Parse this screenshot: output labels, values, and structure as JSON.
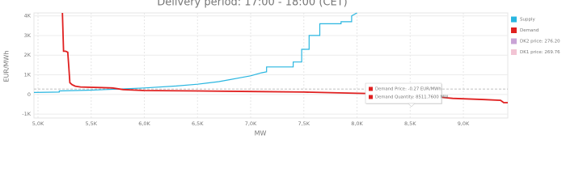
{
  "chart_data": {
    "type": "line",
    "title": "Delivery period: 17:00 - 18:00 (CET)",
    "x_label": "MW",
    "y_label": "EUR/MWh",
    "xlim": [
      4962,
      9418
    ],
    "ylim": [
      -1200,
      4150
    ],
    "xticks": [
      {
        "value": 5000,
        "label": "5,0K"
      },
      {
        "value": 5500,
        "label": "5,5K"
      },
      {
        "value": 6000,
        "label": "6,0K"
      },
      {
        "value": 6500,
        "label": "6,5K"
      },
      {
        "value": 7000,
        "label": "7,0K"
      },
      {
        "value": 7500,
        "label": "7,5K"
      },
      {
        "value": 8000,
        "label": "8,0K"
      },
      {
        "value": 8500,
        "label": "8,5K"
      },
      {
        "value": 9000,
        "label": "9,0K"
      }
    ],
    "yticks": [
      {
        "value": -1000,
        "label": "-1K"
      },
      0,
      {
        "value": 1000,
        "label": "1K"
      },
      {
        "value": 2000,
        "label": "2K"
      },
      {
        "value": 3000,
        "label": "3K"
      },
      {
        "value": 4000,
        "label": "4K"
      }
    ],
    "grid": true,
    "series": [
      {
        "name": "Supply",
        "color": "#29b6e0",
        "x": [
          4962,
          5200,
          5200,
          5500,
          5800,
          6000,
          6300,
          6500,
          6700,
          6800,
          6900,
          7000,
          7100,
          7150,
          7150,
          7400,
          7400,
          7480,
          7480,
          7550,
          7550,
          7650,
          7650,
          7850,
          7850,
          7950,
          7950,
          8000
        ],
        "values": [
          100,
          120,
          180,
          220,
          280,
          330,
          430,
          520,
          650,
          750,
          850,
          950,
          1100,
          1150,
          1400,
          1400,
          1650,
          1650,
          2300,
          2300,
          3000,
          3000,
          3600,
          3600,
          3700,
          3700,
          4000,
          4150
        ]
      },
      {
        "name": "Demand",
        "color": "#e02020",
        "x": [
          5230,
          5240,
          5260,
          5280,
          5290,
          5300,
          5320,
          5350,
          5400,
          5700,
          5800,
          6000,
          6500,
          7000,
          7500,
          8000,
          8300,
          8511.76,
          8600,
          8700,
          8800,
          8900,
          9000,
          9200,
          9350,
          9380,
          9418
        ],
        "values": [
          4150,
          2200,
          2200,
          2150,
          1400,
          600,
          500,
          420,
          380,
          330,
          250,
          200,
          180,
          150,
          120,
          60,
          30,
          -0.27,
          -50,
          -100,
          -150,
          -200,
          -220,
          -260,
          -300,
          -420,
          -420
        ]
      }
    ],
    "reference_lines": [
      {
        "name": "DK2 price: 276.20",
        "value": 276.2,
        "color": "#c9a3d6"
      },
      {
        "name": "DK1 price: 269.76",
        "value": 269.76,
        "color": "#f2c4d4"
      }
    ],
    "tooltip": {
      "x": 8511.76,
      "y": -0.27,
      "lines": [
        "Demand Price: -0.27 EUR/MWh",
        "Demand Quantity: 8511.7600 MW"
      ]
    }
  }
}
